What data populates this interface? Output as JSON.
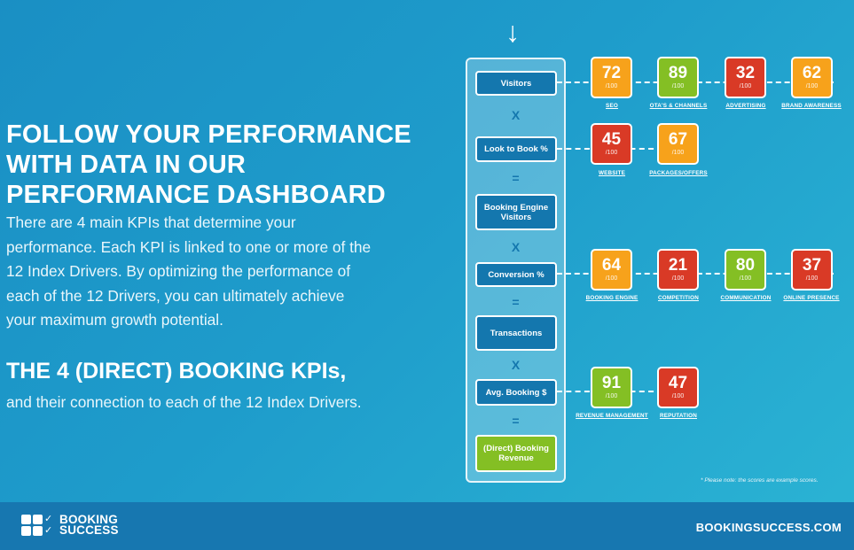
{
  "left": {
    "heading": "FOLLOW YOUR PERFORMANCE\nWITH DATA IN OUR\nPERFORMANCE DASHBOARD",
    "intro": "There are 4 main KPIs that determine your\nperformance. Each KPI is linked to one or more of the\n12 Index Drivers. By optimizing the performance of\neach of the 12 Drivers, you can ultimately achieve\nyour maximum growth potential.",
    "kpi_heading": "THE 4 (DIRECT) BOOKING KPIs,",
    "kpi_sub": "and their connection to each of the 12 Index Drivers."
  },
  "arrow": "↓",
  "flow": {
    "visitors": "Visitors",
    "op1": "X",
    "look_to_book": "Look to Book %",
    "op2": "=",
    "booking_engine_visitors": "Booking Engine\nVisitors",
    "op3": "X",
    "conversion": "Conversion %",
    "op4": "=",
    "transactions": "Transactions",
    "op5": "X",
    "avg_booking": "Avg. Booking $",
    "op6": "=",
    "revenue": "(Direct) Booking\nRevenue"
  },
  "colors": {
    "orange": "#f7a21b",
    "green": "#84bf24",
    "red": "#d93a26"
  },
  "drivers": {
    "seo": {
      "score": "72",
      "den": "/100",
      "label": "SEO",
      "color": "orange"
    },
    "otas": {
      "score": "89",
      "den": "/100",
      "label": "OTA'S & CHANNELS",
      "color": "green"
    },
    "advertising": {
      "score": "32",
      "den": "/100",
      "label": "ADVERTISING",
      "color": "red"
    },
    "brand": {
      "score": "62",
      "den": "/100",
      "label": "BRAND AWARENESS",
      "color": "orange"
    },
    "website": {
      "score": "45",
      "den": "/100",
      "label": "WEBSITE",
      "color": "red"
    },
    "packages": {
      "score": "67",
      "den": "/100",
      "label": "PACKAGES/OFFERS",
      "color": "orange"
    },
    "booking_engine": {
      "score": "64",
      "den": "/100",
      "label": "BOOKING ENGINE",
      "color": "orange"
    },
    "competition": {
      "score": "21",
      "den": "/100",
      "label": "COMPETITION",
      "color": "red"
    },
    "communication": {
      "score": "80",
      "den": "/100",
      "label": "COMMUNICATION",
      "color": "green"
    },
    "online_presence": {
      "score": "37",
      "den": "/100",
      "label": "ONLINE PRESENCE",
      "color": "red"
    },
    "revenue_management": {
      "score": "91",
      "den": "/100",
      "label": "REVENUE MANAGEMENT",
      "color": "green"
    },
    "reputation": {
      "score": "47",
      "den": "/100",
      "label": "REPUTATION",
      "color": "red"
    }
  },
  "note": "* Please note: the scores are example scores.",
  "footer": {
    "logo_text": "BOOKING\nSUCCESS",
    "site": "BOOKINGSUCCESS.COM"
  }
}
